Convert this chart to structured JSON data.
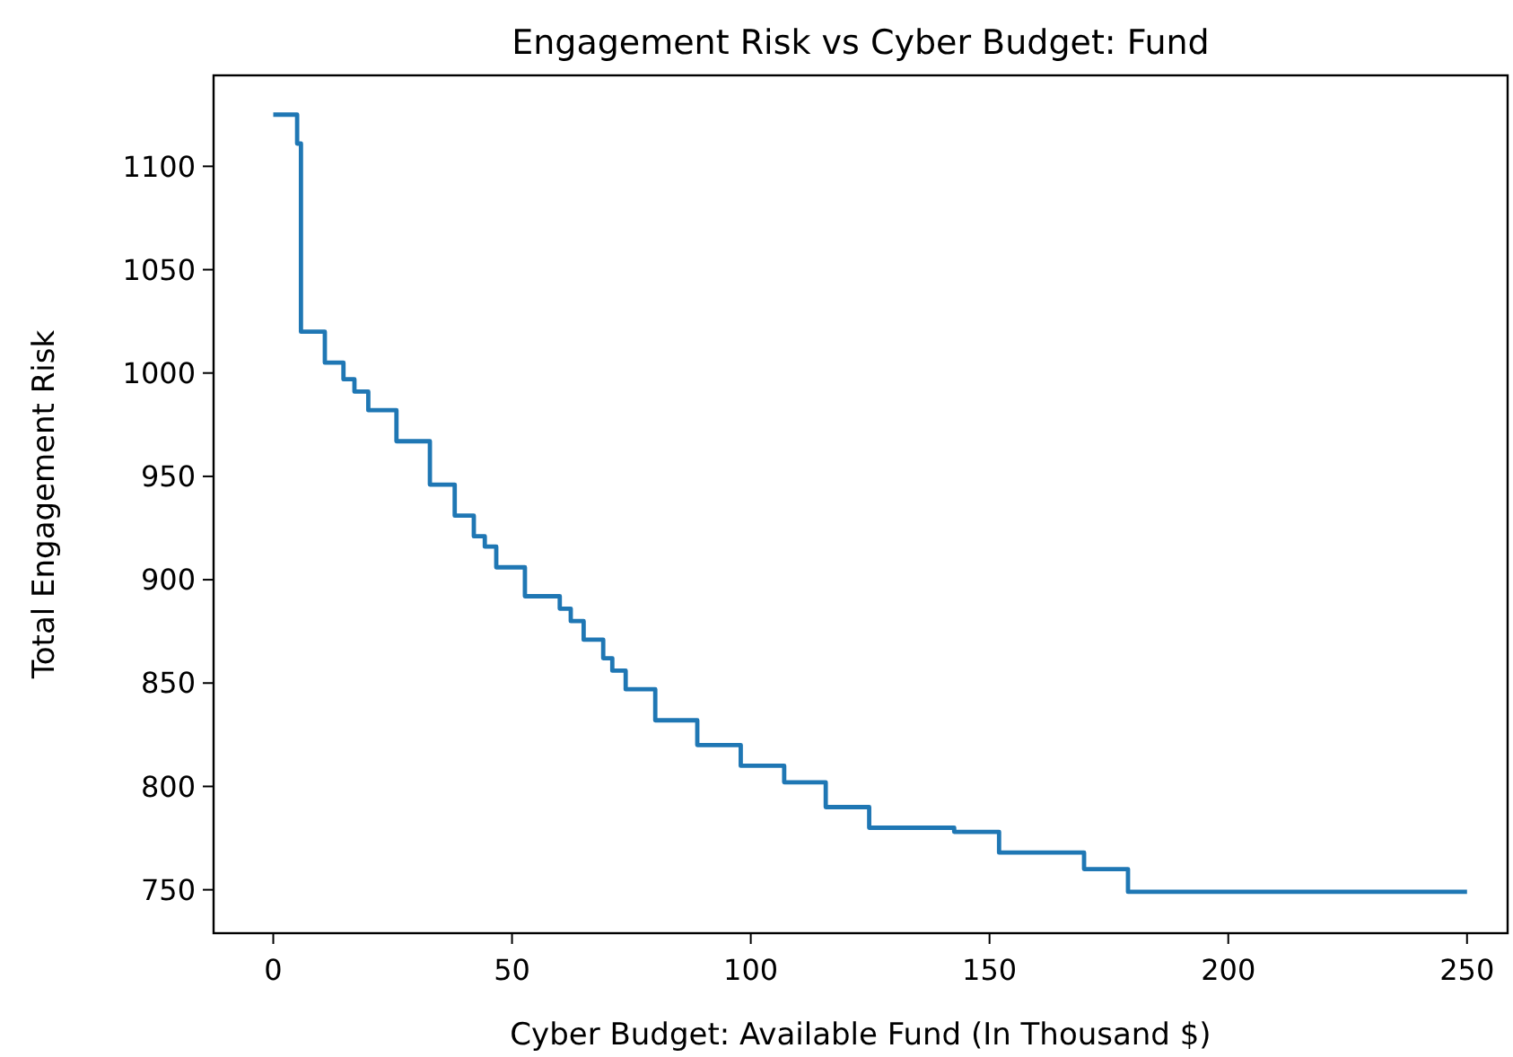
{
  "chart_data": {
    "type": "step",
    "title": "Engagement Risk vs Cyber Budget: Fund",
    "xlabel": "Cyber Budget: Available Fund (In Thousand $)",
    "ylabel": "Total Engagement Risk",
    "x": [
      0,
      5,
      5.8,
      10.8,
      14.7,
      17,
      19.9,
      25.8,
      32.8,
      38,
      42,
      44.3,
      46.7,
      52.7,
      60,
      62.3,
      65,
      69.1,
      71,
      73.8,
      80,
      88.8,
      97.9,
      107,
      115.7,
      124.8,
      142.6,
      152,
      169.8,
      179,
      250
    ],
    "series": [
      {
        "color": "#1f77b4",
        "values": [
          1125,
          1111,
          1020,
          1005,
          997,
          991,
          982,
          967,
          946,
          931,
          921,
          916,
          906,
          892,
          886,
          880,
          871,
          862,
          856,
          847,
          832,
          820,
          810,
          802,
          790,
          780,
          778,
          768,
          760,
          749,
          749
        ]
      }
    ],
    "xlim": [
      -12.5,
      258.5
    ],
    "xticks": [
      0,
      50,
      100,
      150,
      200,
      250
    ],
    "ylim": [
      729,
      1144
    ],
    "yticks": [
      750,
      800,
      850,
      900,
      950,
      1000,
      1050,
      1100
    ],
    "line_style": "solid"
  }
}
